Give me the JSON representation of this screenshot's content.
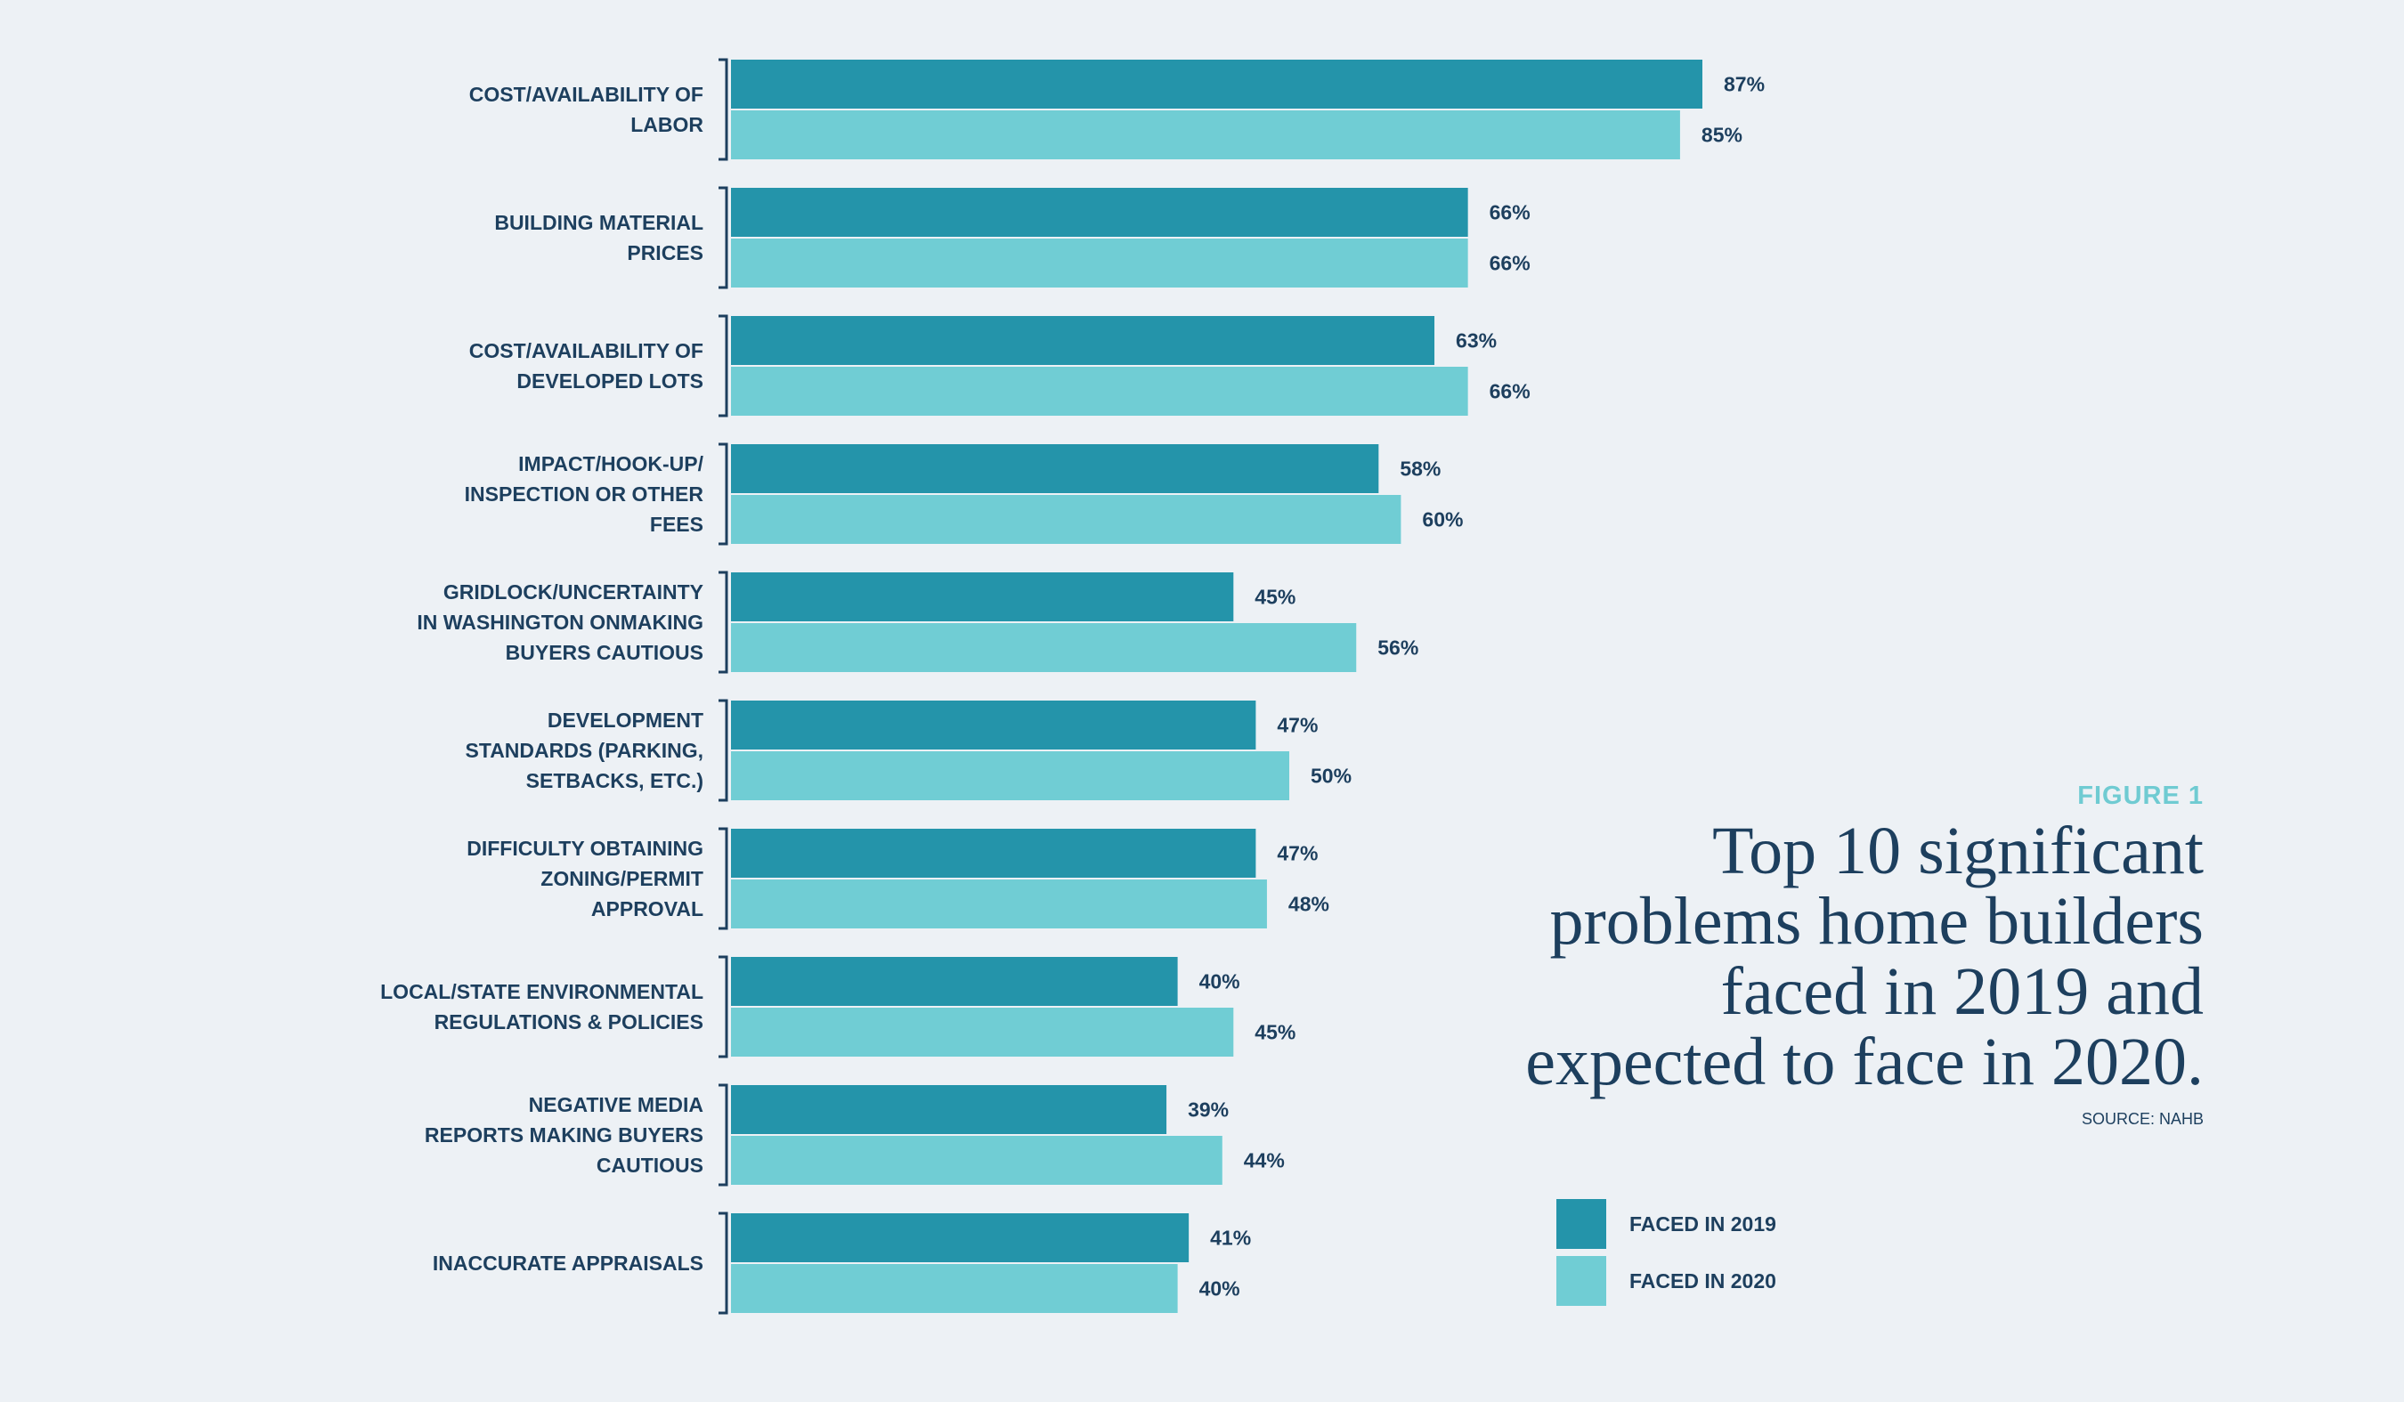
{
  "chart_data": {
    "type": "bar",
    "orientation": "horizontal",
    "categories": [
      "COST/AVAILABILITY OF\nLABOR",
      "BUILDING MATERIAL\nPRICES",
      "COST/AVAILABILITY OF\nDEVELOPED LOTS",
      "IMPACT/HOOK-UP/\nINSPECTION OR OTHER\nFEES",
      "GRIDLOCK/UNCERTAINTY\nIN WASHINGTON ONMAKING\nBUYERS CAUTIOUS",
      "DEVELOPMENT\nSTANDARDS (PARKING,\nSETBACKS, ETC.)",
      "DIFFICULTY OBTAINING\nZONING/PERMIT\nAPPROVAL",
      "LOCAL/STATE ENVIRONMENTAL\nREGULATIONS & POLICIES",
      "NEGATIVE MEDIA\nREPORTS MAKING BUYERS\nCAUTIOUS",
      "INACCURATE APPRAISALS"
    ],
    "series": [
      {
        "name": "FACED IN 2019",
        "values": [
          87,
          66,
          63,
          58,
          45,
          47,
          47,
          40,
          39,
          41
        ],
        "color": "#2494aa"
      },
      {
        "name": "FACED IN 2020",
        "values": [
          85,
          66,
          66,
          60,
          56,
          50,
          48,
          45,
          44,
          40
        ],
        "color": "#70cdd4"
      }
    ],
    "value_suffix": "%",
    "xlim": [
      0,
      100
    ],
    "grid": false,
    "legend_position": "bottom-right"
  },
  "figure": {
    "label": "FIGURE 1",
    "title_lines": [
      "Top 10 significant",
      "problems home builders",
      "faced in 2019 and",
      "expected to face in 2020."
    ],
    "source": "SOURCE: NAHB"
  },
  "colors": {
    "text": "#1d3f5e",
    "background": "#edf1f5"
  }
}
